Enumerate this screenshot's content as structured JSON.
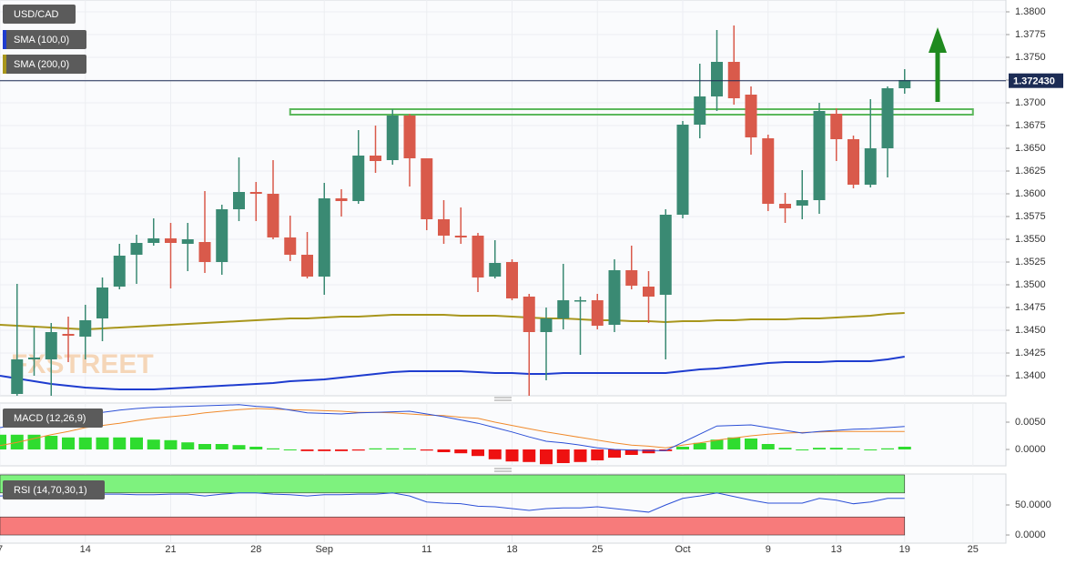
{
  "chart_data": [
    {
      "type": "candlestick",
      "symbol": "USD/CAD",
      "watermark": "FXSTREET",
      "categories": [
        "7",
        null,
        null,
        null,
        null,
        "14",
        null,
        null,
        null,
        null,
        "21",
        null,
        null,
        null,
        null,
        "28",
        null,
        null,
        null,
        "Sep",
        null,
        null,
        null,
        null,
        null,
        "11",
        null,
        null,
        null,
        null,
        "18",
        null,
        null,
        null,
        null,
        "25",
        null,
        null,
        null,
        null,
        "Oct",
        null,
        null,
        null,
        null,
        "9",
        null,
        null,
        null,
        "13",
        null,
        null,
        null,
        "19",
        null,
        null,
        null,
        "25"
      ],
      "open": [
        null,
        1.338,
        1.3418,
        1.3418,
        1.3446,
        1.3443,
        1.3463,
        1.3498,
        1.3533,
        1.3546,
        1.3551,
        1.3545,
        1.3547,
        1.3525,
        1.3583,
        1.3602,
        1.36,
        1.3552,
        1.3533,
        1.3509,
        1.3595,
        1.3592,
        1.3642,
        1.3637,
        1.3686,
        1.3639,
        1.3572,
        1.3554,
        1.3554,
        1.3509,
        1.3525,
        1.3487,
        1.3448,
        1.3463,
        1.3482,
        1.3483,
        1.3456,
        1.3516,
        1.3498,
        1.3489,
        1.3577,
        1.3676,
        1.3707,
        1.3745,
        1.3709,
        1.3661,
        1.3589,
        1.3587,
        1.3593,
        1.3688,
        1.366,
        1.361,
        1.365,
        1.3716,
        null,
        null,
        null,
        null
      ],
      "high": [
        null,
        1.3501,
        1.3453,
        1.3458,
        1.3465,
        1.3478,
        1.3508,
        1.3545,
        1.3555,
        1.3573,
        1.3568,
        1.3568,
        1.3603,
        1.3588,
        1.364,
        1.3613,
        1.3637,
        1.3576,
        1.3558,
        1.3612,
        1.3605,
        1.367,
        1.3675,
        1.3693,
        1.3688,
        1.3639,
        1.3593,
        1.3585,
        1.3557,
        1.3549,
        1.3528,
        1.349,
        1.3475,
        1.3523,
        1.3487,
        1.349,
        1.3528,
        1.3543,
        1.3515,
        1.3583,
        1.368,
        1.3743,
        1.378,
        1.3785,
        1.3718,
        1.3665,
        1.3601,
        1.3626,
        1.37,
        1.3694,
        1.3664,
        1.3704,
        1.3718,
        1.3737,
        null,
        null,
        null,
        null
      ],
      "low": [
        null,
        1.3378,
        1.34,
        1.3378,
        1.3415,
        1.3418,
        1.3438,
        1.3495,
        1.3501,
        1.3543,
        1.3496,
        1.3515,
        1.3513,
        1.3511,
        1.357,
        1.357,
        1.355,
        1.3526,
        1.3507,
        1.3489,
        1.3575,
        1.3589,
        1.3623,
        1.3632,
        1.3608,
        1.356,
        1.3545,
        1.3545,
        1.3492,
        1.3507,
        1.3483,
        1.3378,
        1.3395,
        1.3451,
        1.3423,
        1.3451,
        1.3448,
        1.3495,
        1.3458,
        1.3418,
        1.3573,
        1.3661,
        1.3691,
        1.3698,
        1.3643,
        1.3581,
        1.3568,
        1.3572,
        1.3578,
        1.3636,
        1.3606,
        1.3607,
        1.3618,
        1.371,
        null,
        null,
        null,
        null
      ],
      "close": [
        null,
        1.3418,
        1.342,
        1.3448,
        1.3444,
        1.3461,
        1.3497,
        1.3532,
        1.3546,
        1.3551,
        1.3546,
        1.355,
        1.3525,
        1.3583,
        1.3602,
        1.36,
        1.3552,
        1.3533,
        1.3509,
        1.3595,
        1.3592,
        1.3642,
        1.3636,
        1.3686,
        1.3639,
        1.3572,
        1.3554,
        1.3552,
        1.3508,
        1.3524,
        1.3485,
        1.3448,
        1.3463,
        1.3483,
        1.3483,
        1.3455,
        1.3516,
        1.3499,
        1.3487,
        1.3577,
        1.3676,
        1.3707,
        1.3745,
        1.3705,
        1.3662,
        1.3589,
        1.3584,
        1.3593,
        1.3691,
        1.366,
        1.361,
        1.365,
        1.3716,
        1.3725,
        null,
        null,
        null,
        null
      ],
      "up_color": "#3a8a73",
      "down_color": "#d95a4b",
      "series": [
        {
          "name": "SMA (100,0)",
          "color": "#1e3ccf",
          "values": [
            1.34,
            1.3397,
            1.3394,
            1.3391,
            1.3389,
            1.3387,
            1.3386,
            1.3385,
            1.3385,
            1.3385,
            1.3386,
            1.3387,
            1.3388,
            1.3389,
            1.339,
            1.3391,
            1.3392,
            1.3394,
            1.3395,
            1.3396,
            1.3398,
            1.34,
            1.3402,
            1.3404,
            1.3405,
            1.3405,
            1.3405,
            1.3405,
            1.3404,
            1.3403,
            1.3403,
            1.3402,
            1.3402,
            1.3403,
            1.3403,
            1.3403,
            1.3403,
            1.3403,
            1.3403,
            1.3403,
            1.3405,
            1.3407,
            1.3408,
            1.341,
            1.3412,
            1.3414,
            1.3415,
            1.3415,
            1.3415,
            1.3416,
            1.3416,
            1.3416,
            1.3418,
            1.3421,
            null,
            null,
            null,
            null
          ]
        },
        {
          "name": "SMA (200,0)",
          "color": "#a8961c",
          "values": [
            1.3456,
            1.3455,
            1.3454,
            1.3453,
            1.3452,
            1.3451,
            1.3452,
            1.3453,
            1.3454,
            1.3455,
            1.3456,
            1.3457,
            1.3458,
            1.3459,
            1.346,
            1.3461,
            1.3462,
            1.3463,
            1.3463,
            1.3464,
            1.3465,
            1.3465,
            1.3466,
            1.3467,
            1.3467,
            1.3467,
            1.3467,
            1.3466,
            1.3466,
            1.3466,
            1.3465,
            1.3464,
            1.3463,
            1.3463,
            1.3462,
            1.3461,
            1.3461,
            1.346,
            1.346,
            1.3459,
            1.346,
            1.346,
            1.3461,
            1.3461,
            1.3462,
            1.3462,
            1.3462,
            1.3463,
            1.3463,
            1.3464,
            1.3465,
            1.3466,
            1.3468,
            1.3469,
            null,
            null,
            null,
            null
          ]
        }
      ],
      "resistance_zone": [
        1.3687,
        1.3693
      ],
      "zone_color": "#5cb85c",
      "last_price": {
        "value": 1.37243,
        "label": "1.372430"
      },
      "last_price_color": "#1c2c55",
      "ylim": [
        1.3378,
        1.3813
      ],
      "yticks": [
        {
          "value": 1.34,
          "label": "1.3400"
        },
        {
          "value": 1.3425,
          "label": "1.3425"
        },
        {
          "value": 1.345,
          "label": "1.3450"
        },
        {
          "value": 1.3475,
          "label": "1.3475"
        },
        {
          "value": 1.35,
          "label": "1.3500"
        },
        {
          "value": 1.3525,
          "label": "1.3525"
        },
        {
          "value": 1.355,
          "label": "1.3550"
        },
        {
          "value": 1.3575,
          "label": "1.3575"
        },
        {
          "value": 1.36,
          "label": "1.3600"
        },
        {
          "value": 1.3625,
          "label": "1.3625"
        },
        {
          "value": 1.365,
          "label": "1.3650"
        },
        {
          "value": 1.3675,
          "label": "1.3675"
        },
        {
          "value": 1.37,
          "label": "1.3700"
        },
        {
          "value": 1.3725,
          "label": "1.3725"
        },
        {
          "value": 1.375,
          "label": "1.3750"
        },
        {
          "value": 1.3775,
          "label": "1.3775"
        },
        {
          "value": 1.38,
          "label": "1.3800"
        }
      ],
      "grid": true
    },
    {
      "type": "macd",
      "name": "MACD (12,26,9)",
      "histogram": [
        0.0027,
        0.0027,
        0.0027,
        0.0025,
        0.0022,
        0.0022,
        0.0022,
        0.0022,
        0.0022,
        0.0018,
        0.0017,
        0.0013,
        0.001,
        0.001,
        0.0008,
        0.0005,
        0.0002,
        0,
        -0.0003,
        -0.0003,
        -0.0003,
        -0.0002,
        0.0002,
        0.0002,
        0.0002,
        -0.0002,
        -0.0005,
        -0.0007,
        -0.0012,
        -0.0018,
        -0.0022,
        -0.0023,
        -0.0027,
        -0.0025,
        -0.0023,
        -0.002,
        -0.0015,
        -0.001,
        -0.0007,
        -0.0003,
        0.0005,
        0.0012,
        0.0018,
        0.0022,
        0.002,
        0.001,
        0.0003,
        0,
        0.0003,
        0.0003,
        0.0002,
        0,
        0.0002,
        0.0005,
        null,
        null,
        null,
        null
      ],
      "macd": [
        0.004,
        0.0045,
        0.005,
        0.0055,
        0.006,
        0.0065,
        0.0068,
        0.0072,
        0.0075,
        0.0077,
        0.0078,
        0.0079,
        0.008,
        0.0081,
        0.0082,
        0.0079,
        0.0077,
        0.0072,
        0.0067,
        0.0066,
        0.0065,
        0.0067,
        0.0068,
        0.0069,
        0.007,
        0.0065,
        0.006,
        0.0054,
        0.0048,
        0.004,
        0.0032,
        0.0023,
        0.0015,
        0.0012,
        0.0008,
        0.0003,
        0,
        -0.0001,
        -0.0002,
        -0.0002,
        0.0013,
        0.0028,
        0.0043,
        0.0044,
        0.0045,
        0.004,
        0.0035,
        0.003,
        0.0033,
        0.0035,
        0.0037,
        0.0038,
        0.004,
        0.0042,
        null,
        null,
        null,
        null
      ],
      "signal": [
        0.0007,
        0.0013,
        0.002,
        0.0027,
        0.0033,
        0.004,
        0.0044,
        0.0048,
        0.0053,
        0.0057,
        0.006,
        0.0063,
        0.0067,
        0.007,
        0.0073,
        0.0075,
        0.0074,
        0.0073,
        0.0072,
        0.0071,
        0.007,
        0.0068,
        0.0068,
        0.0067,
        0.0065,
        0.0063,
        0.0062,
        0.0059,
        0.0057,
        0.005,
        0.0044,
        0.0038,
        0.0032,
        0.0027,
        0.0022,
        0.0017,
        0.0012,
        0.0008,
        0.0006,
        0.0003,
        0.0008,
        0.0012,
        0.0017,
        0.0021,
        0.0025,
        0.0028,
        0.003,
        0.0031,
        0.0032,
        0.0033,
        0.0033,
        0.0033,
        0.0033,
        0.0033,
        null,
        null,
        null,
        null
      ],
      "up_color": "#2fdc2f",
      "down_color": "#ee1111",
      "macd_color": "#2b4fd6",
      "signal_color": "#f08a2c",
      "ylim": [
        -0.003,
        0.0085
      ],
      "yticks": [
        {
          "value": 0,
          "label": "0.0000"
        },
        {
          "value": 0.005,
          "label": "0.0050"
        }
      ]
    },
    {
      "type": "rsi",
      "name": "RSI (14,70,30,1)",
      "values": [
        65,
        66,
        67,
        67,
        68,
        68,
        68,
        68,
        67,
        67,
        68,
        68,
        65,
        68,
        70,
        70,
        68,
        67,
        65,
        67,
        67,
        68,
        68,
        70,
        65,
        55,
        53,
        52,
        48,
        47,
        44,
        41,
        44,
        45,
        45,
        47,
        44,
        41,
        38,
        50,
        61,
        65,
        70,
        64,
        58,
        53,
        53,
        53,
        61,
        58,
        52,
        55,
        61,
        61,
        null,
        null,
        null,
        null
      ],
      "color": "#2b4fd6",
      "bands": [
        {
          "from": 70,
          "to": 100,
          "color": "#7ef27e"
        },
        {
          "from": 0,
          "to": 30,
          "color": "#f77b7b"
        }
      ],
      "ylim": [
        -13.6,
        101.5
      ],
      "yticks": [
        {
          "value": 0,
          "label": "0.0000"
        },
        {
          "value": 50,
          "label": "50.0000"
        }
      ]
    }
  ]
}
